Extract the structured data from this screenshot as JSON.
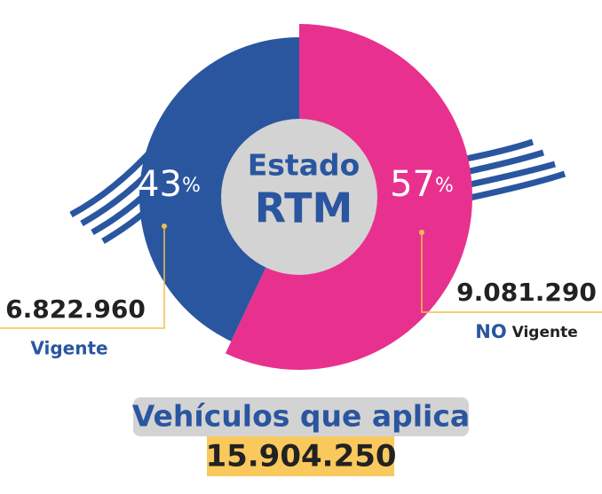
{
  "chart_data": {
    "type": "pie",
    "title_lines": [
      "Estado",
      "RTM"
    ],
    "categories": [
      "Vigente",
      "NO Vigente"
    ],
    "values": [
      43,
      57
    ],
    "value_labels": [
      "43%",
      "57%"
    ],
    "colors": [
      "#2a56a0",
      "#e8318f"
    ],
    "counts": [
      6822960,
      9081290
    ],
    "count_labels": [
      "6.822.960",
      "9.081.290"
    ],
    "total_title": "Vehículos que aplica",
    "total": 15904250,
    "total_label": "15.904.250"
  }
}
